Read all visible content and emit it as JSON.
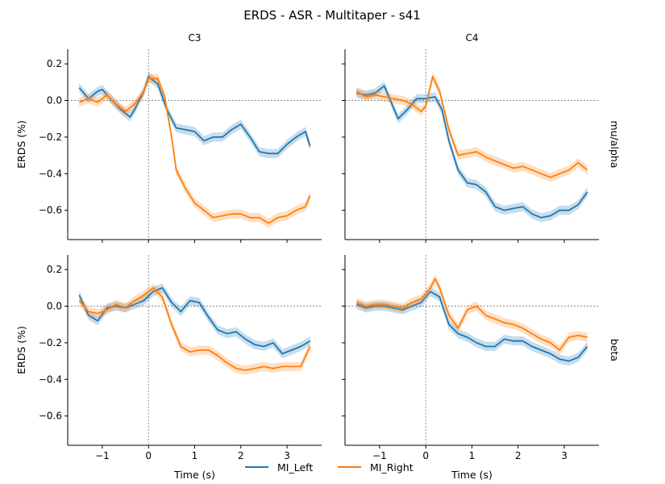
{
  "title": "ERDS - ASR - Multitaper - s41",
  "chart_data": {
    "type": "line",
    "title": "ERDS - ASR - Multitaper - s41",
    "columns": [
      "C3",
      "C4"
    ],
    "rows": [
      "mu/alpha",
      "beta"
    ],
    "xlabel": "Time (s)",
    "ylabel": "ERDS (%)",
    "xlim": [
      -1.75,
      3.75
    ],
    "ylim": [
      -0.76,
      0.28
    ],
    "xticks": [
      -1,
      0,
      1,
      2,
      3
    ],
    "xtick_labels": [
      "−1",
      "0",
      "1",
      "2",
      "3"
    ],
    "yticks": [
      0.2,
      0.0,
      -0.2,
      -0.4,
      -0.6
    ],
    "ytick_labels": [
      "0.2",
      "0.0",
      "−0.2",
      "−0.4",
      "−0.6"
    ],
    "legend": {
      "placement": "bottom-center",
      "entries": [
        {
          "name": "MI_Left",
          "color": "#1f77b4"
        },
        {
          "name": "MI_Right",
          "color": "#ff7f0e"
        }
      ]
    },
    "reference_lines": {
      "x": 0,
      "y": 0,
      "style": "dotted-gray"
    },
    "panels": [
      {
        "channel": "C3",
        "band": "mu/alpha",
        "series": [
          {
            "name": "MI_Left",
            "color": "#1f77b4",
            "x": [
              -1.5,
              -1.3,
              -1.1,
              -1.0,
              -0.9,
              -0.6,
              -0.5,
              -0.4,
              -0.3,
              -0.1,
              0.0,
              0.2,
              0.4,
              0.6,
              0.8,
              1.0,
              1.2,
              1.4,
              1.6,
              1.8,
              2.0,
              2.2,
              2.4,
              2.6,
              2.8,
              3.0,
              3.2,
              3.4,
              3.5
            ],
            "values": [
              0.07,
              0.01,
              0.05,
              0.06,
              0.03,
              -0.05,
              -0.07,
              -0.09,
              -0.05,
              0.05,
              0.13,
              0.09,
              -0.05,
              -0.15,
              -0.16,
              -0.17,
              -0.22,
              -0.2,
              -0.2,
              -0.16,
              -0.13,
              -0.2,
              -0.28,
              -0.29,
              -0.29,
              -0.24,
              -0.2,
              -0.17,
              -0.25
            ]
          },
          {
            "name": "MI_Right",
            "color": "#ff7f0e",
            "x": [
              -1.5,
              -1.3,
              -1.1,
              -0.9,
              -0.7,
              -0.5,
              -0.3,
              -0.1,
              0.0,
              0.2,
              0.35,
              0.5,
              0.6,
              0.8,
              1.0,
              1.2,
              1.4,
              1.6,
              1.8,
              2.0,
              2.2,
              2.4,
              2.6,
              2.8,
              3.0,
              3.2,
              3.4,
              3.5
            ],
            "values": [
              -0.01,
              0.01,
              -0.01,
              0.03,
              -0.02,
              -0.06,
              -0.02,
              0.05,
              0.12,
              0.12,
              0.02,
              -0.2,
              -0.38,
              -0.48,
              -0.56,
              -0.6,
              -0.64,
              -0.63,
              -0.62,
              -0.62,
              -0.64,
              -0.64,
              -0.67,
              -0.64,
              -0.63,
              -0.6,
              -0.58,
              -0.52
            ]
          }
        ]
      },
      {
        "channel": "C4",
        "band": "mu/alpha",
        "series": [
          {
            "name": "MI_Left",
            "color": "#1f77b4",
            "x": [
              -1.5,
              -1.3,
              -1.1,
              -0.9,
              -0.8,
              -0.6,
              -0.4,
              -0.2,
              0.0,
              0.2,
              0.35,
              0.5,
              0.7,
              0.9,
              1.1,
              1.3,
              1.5,
              1.7,
              1.9,
              2.1,
              2.3,
              2.5,
              2.7,
              2.9,
              3.1,
              3.3,
              3.5
            ],
            "values": [
              0.04,
              0.03,
              0.04,
              0.08,
              0.02,
              -0.1,
              -0.05,
              0.01,
              0.01,
              0.02,
              -0.05,
              -0.22,
              -0.38,
              -0.45,
              -0.46,
              -0.5,
              -0.58,
              -0.6,
              -0.59,
              -0.58,
              -0.62,
              -0.64,
              -0.63,
              -0.6,
              -0.6,
              -0.57,
              -0.5
            ]
          },
          {
            "name": "MI_Right",
            "color": "#ff7f0e",
            "x": [
              -1.5,
              -1.3,
              -1.1,
              -0.9,
              -0.7,
              -0.5,
              -0.3,
              -0.1,
              0.0,
              0.15,
              0.3,
              0.5,
              0.7,
              0.9,
              1.1,
              1.3,
              1.5,
              1.7,
              1.9,
              2.1,
              2.3,
              2.5,
              2.7,
              2.9,
              3.1,
              3.3,
              3.5
            ],
            "values": [
              0.05,
              0.02,
              0.03,
              0.02,
              0.01,
              0.0,
              -0.02,
              -0.06,
              -0.03,
              0.13,
              0.05,
              -0.16,
              -0.3,
              -0.29,
              -0.28,
              -0.31,
              -0.33,
              -0.35,
              -0.37,
              -0.36,
              -0.38,
              -0.4,
              -0.42,
              -0.4,
              -0.38,
              -0.34,
              -0.38
            ]
          }
        ]
      },
      {
        "channel": "C3",
        "band": "beta",
        "series": [
          {
            "name": "MI_Left",
            "color": "#1f77b4",
            "x": [
              -1.5,
              -1.3,
              -1.1,
              -0.9,
              -0.7,
              -0.5,
              -0.3,
              -0.1,
              0.1,
              0.3,
              0.5,
              0.7,
              0.9,
              1.1,
              1.3,
              1.5,
              1.7,
              1.9,
              2.1,
              2.3,
              2.5,
              2.7,
              2.9,
              3.1,
              3.3,
              3.5
            ],
            "values": [
              0.06,
              -0.05,
              -0.08,
              -0.01,
              0.0,
              -0.01,
              0.01,
              0.03,
              0.08,
              0.1,
              0.02,
              -0.03,
              0.03,
              0.02,
              -0.06,
              -0.13,
              -0.15,
              -0.14,
              -0.18,
              -0.21,
              -0.22,
              -0.2,
              -0.26,
              -0.24,
              -0.22,
              -0.19
            ]
          },
          {
            "name": "MI_Right",
            "color": "#ff7f0e",
            "x": [
              -1.5,
              -1.3,
              -1.1,
              -0.9,
              -0.7,
              -0.5,
              -0.3,
              -0.1,
              0.1,
              0.3,
              0.5,
              0.7,
              0.9,
              1.1,
              1.3,
              1.5,
              1.7,
              1.9,
              2.1,
              2.3,
              2.5,
              2.7,
              2.9,
              3.1,
              3.3,
              3.5
            ],
            "values": [
              0.03,
              -0.03,
              -0.04,
              -0.02,
              0.01,
              -0.01,
              0.03,
              0.06,
              0.1,
              0.05,
              -0.1,
              -0.22,
              -0.25,
              -0.24,
              -0.24,
              -0.27,
              -0.31,
              -0.34,
              -0.35,
              -0.34,
              -0.33,
              -0.34,
              -0.33,
              -0.33,
              -0.33,
              -0.22
            ]
          }
        ]
      },
      {
        "channel": "C4",
        "band": "beta",
        "series": [
          {
            "name": "MI_Left",
            "color": "#1f77b4",
            "x": [
              -1.5,
              -1.3,
              -1.1,
              -0.9,
              -0.7,
              -0.5,
              -0.3,
              -0.1,
              0.1,
              0.3,
              0.5,
              0.7,
              0.9,
              1.1,
              1.3,
              1.5,
              1.7,
              1.9,
              2.1,
              2.3,
              2.5,
              2.7,
              2.9,
              3.1,
              3.3,
              3.5
            ],
            "values": [
              0.01,
              -0.01,
              0.0,
              0.0,
              -0.01,
              -0.02,
              0.0,
              0.02,
              0.08,
              0.05,
              -0.1,
              -0.15,
              -0.17,
              -0.2,
              -0.22,
              -0.22,
              -0.18,
              -0.19,
              -0.19,
              -0.22,
              -0.24,
              -0.26,
              -0.29,
              -0.3,
              -0.28,
              -0.22
            ]
          },
          {
            "name": "MI_Right",
            "color": "#ff7f0e",
            "x": [
              -1.5,
              -1.3,
              -1.1,
              -0.9,
              -0.7,
              -0.5,
              -0.3,
              -0.1,
              0.1,
              0.2,
              0.3,
              0.5,
              0.7,
              0.9,
              1.1,
              1.3,
              1.5,
              1.7,
              1.9,
              2.1,
              2.3,
              2.5,
              2.7,
              2.9,
              3.1,
              3.3,
              3.5
            ],
            "values": [
              0.02,
              0.0,
              0.01,
              0.01,
              0.0,
              -0.01,
              0.02,
              0.04,
              0.1,
              0.15,
              0.1,
              -0.05,
              -0.12,
              -0.02,
              0.0,
              -0.05,
              -0.07,
              -0.09,
              -0.1,
              -0.12,
              -0.15,
              -0.18,
              -0.2,
              -0.24,
              -0.17,
              -0.16,
              -0.17
            ]
          }
        ]
      }
    ]
  }
}
